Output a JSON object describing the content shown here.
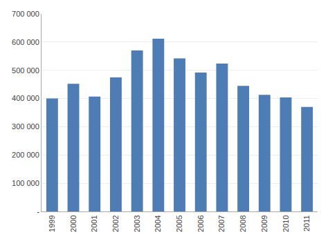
{
  "chart_data": {
    "type": "bar",
    "categories": [
      "1999",
      "2000",
      "2001",
      "2002",
      "2003",
      "2004",
      "2005",
      "2006",
      "2007",
      "2008",
      "2009",
      "2010",
      "2011"
    ],
    "values": [
      400000,
      452000,
      407000,
      475000,
      570000,
      612000,
      542000,
      492000,
      524000,
      445000,
      413000,
      404000,
      370000
    ],
    "color": "#4E7DB5",
    "ylim": [
      0,
      700000
    ],
    "yticks": [
      {
        "value": 0,
        "label": "-"
      },
      {
        "value": 100000,
        "label": "100 000"
      },
      {
        "value": 200000,
        "label": "200 000"
      },
      {
        "value": 300000,
        "label": "300 000"
      },
      {
        "value": 400000,
        "label": "400 000"
      },
      {
        "value": 500000,
        "label": "500 000"
      },
      {
        "value": 600000,
        "label": "600 000"
      },
      {
        "value": 700000,
        "label": "700 000"
      }
    ],
    "grid": true
  }
}
